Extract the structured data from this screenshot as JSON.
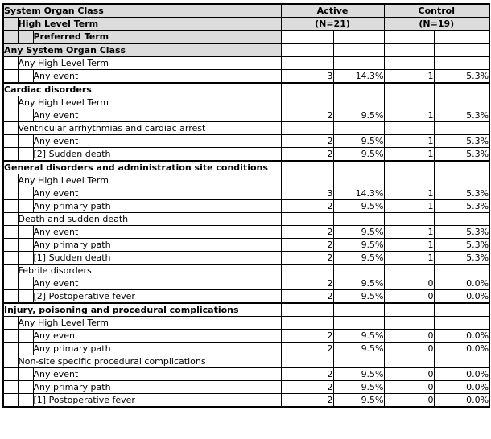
{
  "header": {
    "level1": "System Organ Class",
    "level2": "High Level Term",
    "level3": "Preferred Term",
    "group1": {
      "title": "Active",
      "n": "(N=21)"
    },
    "group2": {
      "title": "Control",
      "n": "(N=19)"
    }
  },
  "columns_per_group": [
    "count",
    "percent"
  ],
  "colors": {
    "header_bg": "#dcdcdc",
    "border": "#000000",
    "row_bg": "#ffffff"
  },
  "rows": [
    {
      "type": "soc",
      "shaded": true,
      "label": "Any System Organ Class",
      "n1": "",
      "p1": "",
      "n2": "",
      "p2": ""
    },
    {
      "type": "hlt",
      "label": "Any High Level Term",
      "n1": "",
      "p1": "",
      "n2": "",
      "p2": ""
    },
    {
      "type": "pt",
      "label": "Any event",
      "n1": "3",
      "p1": "14.3%",
      "n2": "1",
      "p2": "5.3%"
    },
    {
      "type": "soc",
      "section_start": true,
      "label": "Cardiac disorders",
      "n1": "",
      "p1": "",
      "n2": "",
      "p2": ""
    },
    {
      "type": "hlt",
      "label": "Any High Level Term",
      "n1": "",
      "p1": "",
      "n2": "",
      "p2": ""
    },
    {
      "type": "pt",
      "label": "Any event",
      "n1": "2",
      "p1": "9.5%",
      "n2": "1",
      "p2": "5.3%"
    },
    {
      "type": "hlt",
      "label": "Ventricular arrhythmias and cardiac arrest",
      "n1": "",
      "p1": "",
      "n2": "",
      "p2": ""
    },
    {
      "type": "pt",
      "label": "Any event",
      "n1": "2",
      "p1": "9.5%",
      "n2": "1",
      "p2": "5.3%"
    },
    {
      "type": "pt",
      "label": "[2] Sudden death",
      "n1": "2",
      "p1": "9.5%",
      "n2": "1",
      "p2": "5.3%"
    },
    {
      "type": "soc",
      "section_start": true,
      "label": "General disorders and administration site conditions",
      "n1": "",
      "p1": "",
      "n2": "",
      "p2": ""
    },
    {
      "type": "hlt",
      "label": "Any High Level Term",
      "n1": "",
      "p1": "",
      "n2": "",
      "p2": ""
    },
    {
      "type": "pt",
      "label": "Any event",
      "n1": "3",
      "p1": "14.3%",
      "n2": "1",
      "p2": "5.3%"
    },
    {
      "type": "pt",
      "label": "Any primary path",
      "n1": "2",
      "p1": "9.5%",
      "n2": "1",
      "p2": "5.3%"
    },
    {
      "type": "hlt",
      "label": "Death and sudden death",
      "n1": "",
      "p1": "",
      "n2": "",
      "p2": ""
    },
    {
      "type": "pt",
      "label": "Any event",
      "n1": "2",
      "p1": "9.5%",
      "n2": "1",
      "p2": "5.3%"
    },
    {
      "type": "pt",
      "label": "Any primary path",
      "n1": "2",
      "p1": "9.5%",
      "n2": "1",
      "p2": "5.3%"
    },
    {
      "type": "pt",
      "label": "[1] Sudden death",
      "n1": "2",
      "p1": "9.5%",
      "n2": "1",
      "p2": "5.3%"
    },
    {
      "type": "hlt",
      "label": "Febrile disorders",
      "n1": "",
      "p1": "",
      "n2": "",
      "p2": ""
    },
    {
      "type": "pt",
      "label": "Any event",
      "n1": "2",
      "p1": "9.5%",
      "n2": "0",
      "p2": "0.0%"
    },
    {
      "type": "pt",
      "label": "[2] Postoperative fever",
      "n1": "2",
      "p1": "9.5%",
      "n2": "0",
      "p2": "0.0%"
    },
    {
      "type": "soc",
      "section_start": true,
      "label": "Injury, poisoning and procedural complications",
      "n1": "",
      "p1": "",
      "n2": "",
      "p2": ""
    },
    {
      "type": "hlt",
      "label": "Any High Level Term",
      "n1": "",
      "p1": "",
      "n2": "",
      "p2": ""
    },
    {
      "type": "pt",
      "label": "Any event",
      "n1": "2",
      "p1": "9.5%",
      "n2": "0",
      "p2": "0.0%"
    },
    {
      "type": "pt",
      "label": "Any primary path",
      "n1": "2",
      "p1": "9.5%",
      "n2": "0",
      "p2": "0.0%"
    },
    {
      "type": "hlt",
      "label": "Non-site specific procedural complications",
      "n1": "",
      "p1": "",
      "n2": "",
      "p2": ""
    },
    {
      "type": "pt",
      "label": "Any event",
      "n1": "2",
      "p1": "9.5%",
      "n2": "0",
      "p2": "0.0%"
    },
    {
      "type": "pt",
      "label": "Any primary path",
      "n1": "2",
      "p1": "9.5%",
      "n2": "0",
      "p2": "0.0%"
    },
    {
      "type": "pt",
      "label": "[1] Postoperative fever",
      "n1": "2",
      "p1": "9.5%",
      "n2": "0",
      "p2": "0.0%"
    }
  ]
}
